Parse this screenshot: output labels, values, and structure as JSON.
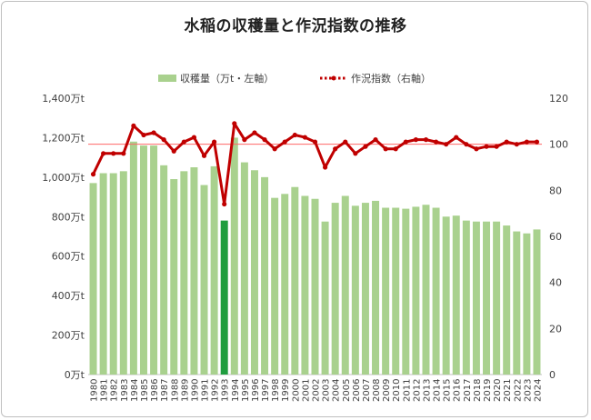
{
  "title": "水稲の収穫量と作況指数の推移",
  "legend": {
    "bar_label": "収穫量（万t・左軸）",
    "line_label": "作況指数（右軸）"
  },
  "colors": {
    "bar": "#a9d18e",
    "bar_highlight": "#1f9d3f",
    "line": "#c00000",
    "reference_line": "#ff6666",
    "axis_text": "#404040",
    "grid": "#d9d9d9"
  },
  "chart_data": {
    "type": "bar",
    "title": "水稲の収穫量と作況指数の推移",
    "legend_position": "top",
    "grid": false,
    "categories": [
      "1980",
      "1981",
      "1982",
      "1983",
      "1984",
      "1985",
      "1986",
      "1987",
      "1988",
      "1989",
      "1990",
      "1991",
      "1992",
      "1993",
      "1994",
      "1995",
      "1996",
      "1997",
      "1998",
      "1999",
      "2000",
      "2001",
      "2002",
      "2003",
      "2004",
      "2005",
      "2006",
      "2007",
      "2008",
      "2009",
      "2010",
      "2011",
      "2012",
      "2013",
      "2014",
      "2015",
      "2016",
      "2017",
      "2018",
      "2019",
      "2020",
      "2021",
      "2022",
      "2023",
      "2024"
    ],
    "highlight_category": "1993",
    "reference_value": 100,
    "left_axis": {
      "ylim": [
        0,
        1400
      ],
      "ticks": [
        0,
        200,
        400,
        600,
        800,
        1000,
        1200,
        1400
      ],
      "tick_labels": [
        "0万t",
        "200万t",
        "400万t",
        "600万t",
        "800万t",
        "1,000万t",
        "1,200万t",
        "1,400万t"
      ]
    },
    "right_axis": {
      "ylim": [
        0,
        120
      ],
      "ticks": [
        0,
        20,
        40,
        60,
        80,
        100,
        120
      ],
      "tick_labels": [
        "0",
        "20",
        "40",
        "60",
        "80",
        "100",
        "120"
      ]
    },
    "series": [
      {
        "name": "収穫量（万t・左軸）",
        "type": "bar",
        "axis": "left",
        "values": [
          970,
          1020,
          1020,
          1030,
          1180,
          1160,
          1160,
          1060,
          990,
          1030,
          1050,
          960,
          1055,
          780,
          1200,
          1075,
          1035,
          1000,
          895,
          915,
          950,
          905,
          890,
          775,
          870,
          905,
          855,
          870,
          880,
          845,
          845,
          840,
          850,
          860,
          845,
          800,
          805,
          780,
          775,
          775,
          775,
          755,
          725,
          715,
          735
        ]
      },
      {
        "name": "作況指数（右軸）",
        "type": "line",
        "axis": "right",
        "values": [
          87,
          96,
          96,
          96,
          108,
          104,
          105,
          102,
          97,
          101,
          103,
          95,
          101,
          74,
          109,
          102,
          105,
          102,
          98,
          101,
          104,
          103,
          101,
          90,
          98,
          101,
          96,
          99,
          102,
          98,
          98,
          101,
          102,
          102,
          101,
          100,
          103,
          100,
          98,
          99,
          99,
          101,
          100,
          101,
          101
        ]
      }
    ]
  }
}
